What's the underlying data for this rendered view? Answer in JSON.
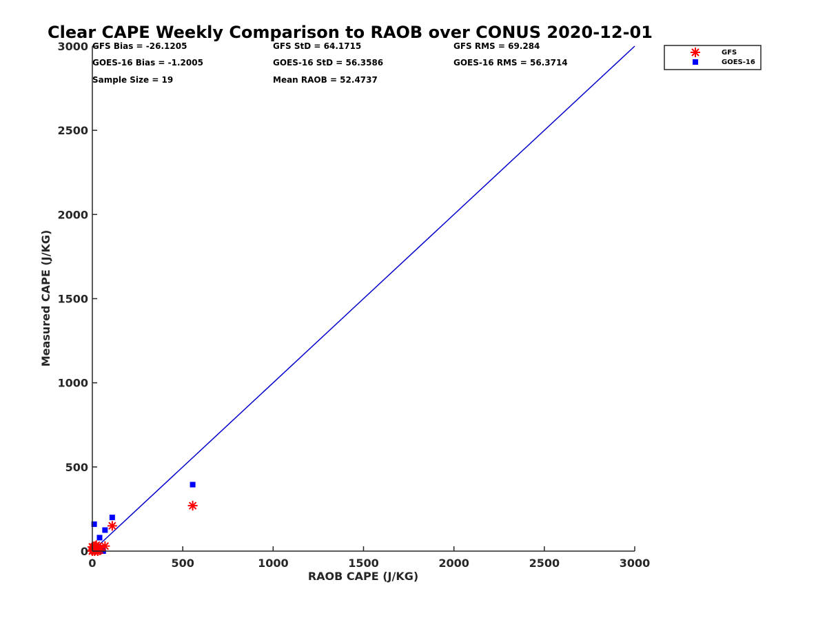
{
  "chart_data": {
    "type": "scatter",
    "title": "Clear CAPE Weekly Comparison to RAOB over CONUS 2020-12-01",
    "xlabel": "RAOB CAPE (J/KG)",
    "ylabel": "Measured CAPE (J/KG)",
    "xlim": [
      0,
      3000
    ],
    "ylim": [
      0,
      3000
    ],
    "xticks": [
      0,
      500,
      1000,
      1500,
      2000,
      2500,
      3000
    ],
    "yticks": [
      0,
      500,
      1000,
      1500,
      2000,
      2500,
      3000
    ],
    "grid": false,
    "legend_position": "top-right",
    "reference_line": {
      "x": [
        0,
        3000
      ],
      "y": [
        0,
        3000
      ],
      "color": "#0000cc"
    },
    "series": [
      {
        "name": "GFS",
        "marker": "asterisk",
        "color": "#ff0000",
        "points": [
          [
            0,
            0
          ],
          [
            2,
            5
          ],
          [
            5,
            10
          ],
          [
            8,
            15
          ],
          [
            10,
            25
          ],
          [
            12,
            0
          ],
          [
            15,
            30
          ],
          [
            18,
            5
          ],
          [
            20,
            20
          ],
          [
            22,
            35
          ],
          [
            25,
            10
          ],
          [
            30,
            0
          ],
          [
            35,
            15
          ],
          [
            40,
            5
          ],
          [
            45,
            20
          ],
          [
            70,
            30
          ],
          [
            110,
            150
          ],
          [
            555,
            270
          ],
          [
            0,
            25
          ]
        ]
      },
      {
        "name": "GOES-16",
        "marker": "square",
        "color": "#0000ff",
        "points": [
          [
            0,
            0
          ],
          [
            3,
            10
          ],
          [
            5,
            5
          ],
          [
            8,
            0
          ],
          [
            10,
            160
          ],
          [
            12,
            20
          ],
          [
            15,
            8
          ],
          [
            18,
            0
          ],
          [
            20,
            15
          ],
          [
            25,
            5
          ],
          [
            30,
            12
          ],
          [
            35,
            0
          ],
          [
            40,
            80
          ],
          [
            45,
            10
          ],
          [
            50,
            5
          ],
          [
            70,
            125
          ],
          [
            110,
            200
          ],
          [
            555,
            395
          ],
          [
            60,
            0
          ]
        ]
      }
    ],
    "annotations": [
      [
        "GFS Bias = -26.1205",
        "GFS StD = 64.1715",
        "GFS RMS = 69.284"
      ],
      [
        "GOES-16 Bias = -1.2005",
        "GOES-16 StD = 56.3586",
        "GOES-16 RMS = 56.3714"
      ],
      [
        "Sample Size = 19",
        "Mean RAOB = 52.4737",
        ""
      ]
    ]
  }
}
